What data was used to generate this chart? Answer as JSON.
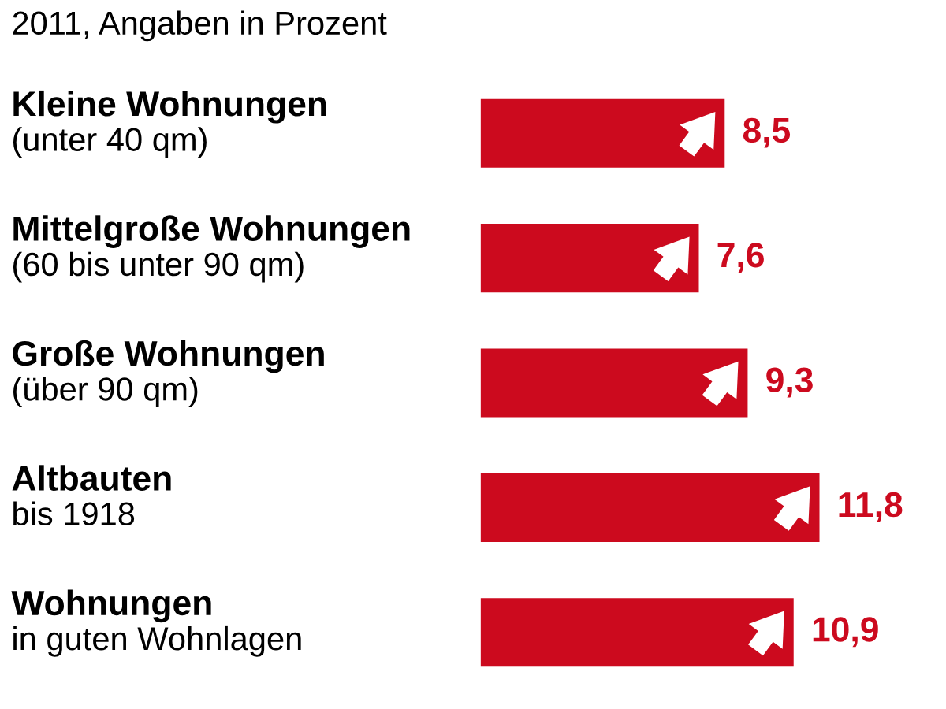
{
  "chart_data": {
    "type": "bar",
    "orientation": "horizontal",
    "subtitle": "2011, Angaben in Prozent",
    "categories": [
      "Kleine Wohnungen\n(unter 40 qm)",
      "Mittelgroße Wohnungen\n(60 bis unter 90 qm)",
      "Große Wohnungen\n(über 90 qm)",
      "Altbauten\nbis 1918",
      "Wohnungen\nin guten Wohnlagen"
    ],
    "values": [
      8.5,
      7.6,
      9.3,
      11.8,
      10.9
    ],
    "value_labels": [
      "8,5",
      "7,6",
      "9,3",
      "11,8",
      "10,9"
    ],
    "color": "#cc0a1e"
  }
}
